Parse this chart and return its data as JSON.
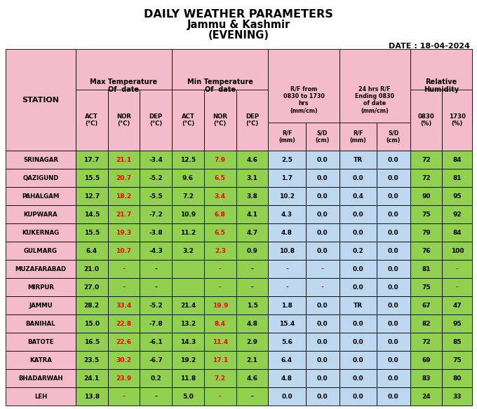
{
  "title1": "DAILY WEATHER PARAMETERS",
  "title2": "Jammu & Kashmir",
  "title3": "(EVENING)",
  "date_label": "DATE : 18-04-2024",
  "stations": [
    "SRINAGAR",
    "QAZIGUND",
    "PAHALGAM",
    "KUPWARA",
    "KUKERNAG",
    "GULMARG",
    "MUZAFARABAD",
    "MIRPUR",
    "JAMMU",
    "BANIHAL",
    "BATOTE",
    "KATRA",
    "BHADARWAH",
    "LEH"
  ],
  "max_act": [
    "17.7",
    "15.5",
    "12.7",
    "14.5",
    "15.5",
    "6.4",
    "21.0",
    "27.0",
    "28.2",
    "15.0",
    "16.5",
    "23.5",
    "24.1",
    "13.8"
  ],
  "max_nor": [
    "21.1",
    "20.7",
    "18.2",
    "21.7",
    "19.3",
    "10.7",
    "-",
    "-",
    "33.4",
    "22.8",
    "22.6",
    "30.2",
    "23.9",
    "-"
  ],
  "max_dep": [
    "-3.4",
    "-5.2",
    "-5.5",
    "-7.2",
    "-3.8",
    "-4.3",
    "-",
    "-",
    "-5.2",
    "-7.8",
    "-6.1",
    "-6.7",
    "0.2",
    "-"
  ],
  "min_act": [
    "12.5",
    "9.6",
    "7.2",
    "10.9",
    "11.2",
    "3.2",
    "",
    "",
    "21.4",
    "13.2",
    "14.3",
    "19.2",
    "11.8",
    "5.0"
  ],
  "min_nor": [
    "7.9",
    "6.5",
    "3.4",
    "6.8",
    "6.5",
    "2.3",
    "-",
    "-",
    "19.9",
    "8.4",
    "11.4",
    "17.1",
    "7.2",
    "-"
  ],
  "min_dep": [
    "4.6",
    "3.1",
    "3.8",
    "4.1",
    "4.7",
    "0.9",
    "-",
    "-",
    "1.5",
    "4.8",
    "2.9",
    "2.1",
    "4.6",
    "-"
  ],
  "rf_mm": [
    "2.5",
    "1.7",
    "10.2",
    "4.3",
    "4.8",
    "10.8",
    "-",
    "-",
    "1.8",
    "15.4",
    "5.6",
    "6.4",
    "4.8",
    "0.0"
  ],
  "rf_sd": [
    "0.0",
    "0.0",
    "0.0",
    "0.0",
    "0.0",
    "0.0",
    "-",
    "-",
    "0.0",
    "0.0",
    "0.0",
    "0.0",
    "0.0",
    "0.0"
  ],
  "hrs24_mm": [
    "TR",
    "0.0",
    "0.4",
    "0.0",
    "0.0",
    "0.2",
    "0.0",
    "0.0",
    "TR",
    "0.0",
    "0.0",
    "0.0",
    "0.0",
    "0.0"
  ],
  "hrs24_sd": [
    "0.0",
    "0.0",
    "0.0",
    "0.0",
    "0.0",
    "0.0",
    "0.0",
    "0.0",
    "0.0",
    "0.0",
    "0.0",
    "0.0",
    "0.0",
    "0.0"
  ],
  "rh_0830": [
    "72",
    "72",
    "90",
    "75",
    "79",
    "76",
    "81",
    "75",
    "67",
    "82",
    "72",
    "69",
    "83",
    "24"
  ],
  "rh_1730": [
    "84",
    "81",
    "95",
    "92",
    "84",
    "100",
    "-",
    "-",
    "47",
    "95",
    "85",
    "75",
    "80",
    "33"
  ],
  "header_bg": "#F4BCCA",
  "row_bg_green": "#92D050",
  "row_bg_blue": "#BDD7EE",
  "min_act_empty": [
    false,
    false,
    false,
    false,
    false,
    false,
    true,
    true,
    false,
    false,
    false,
    false,
    false,
    false
  ],
  "nor_red_cols": [
    true,
    true,
    true,
    true,
    true,
    true,
    false,
    false,
    true,
    true,
    true,
    true,
    true,
    false
  ],
  "rh1730_red": [
    false,
    false,
    false,
    false,
    false,
    false,
    true,
    true,
    false,
    false,
    false,
    false,
    false,
    false
  ]
}
